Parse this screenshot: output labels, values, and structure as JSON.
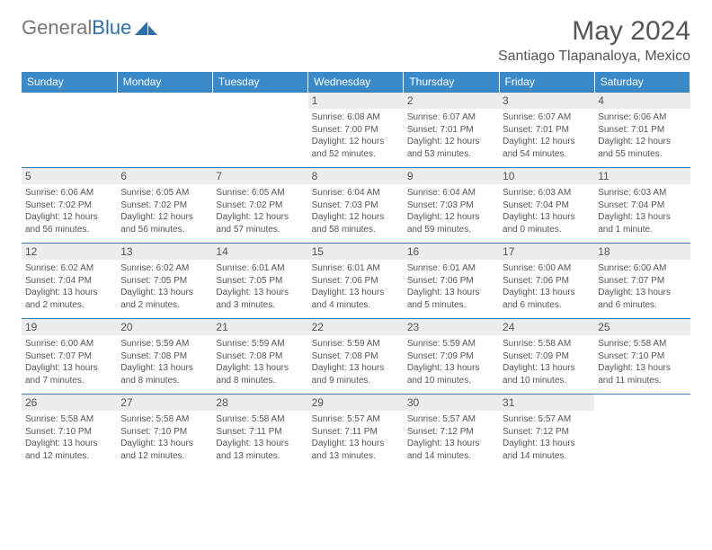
{
  "logo": {
    "part1": "General",
    "part2": "Blue"
  },
  "title": "May 2024",
  "location": "Santiago Tlapanaloya, Mexico",
  "colors": {
    "header_bg": "#3a8ac9",
    "row_divider": "#3a78a5",
    "daynum_bg": "#ececec"
  },
  "weekdays": [
    "Sunday",
    "Monday",
    "Tuesday",
    "Wednesday",
    "Thursday",
    "Friday",
    "Saturday"
  ],
  "weeks": [
    [
      null,
      null,
      null,
      {
        "n": "1",
        "sr": "6:08 AM",
        "ss": "7:00 PM",
        "dl": "12 hours and 52 minutes."
      },
      {
        "n": "2",
        "sr": "6:07 AM",
        "ss": "7:01 PM",
        "dl": "12 hours and 53 minutes."
      },
      {
        "n": "3",
        "sr": "6:07 AM",
        "ss": "7:01 PM",
        "dl": "12 hours and 54 minutes."
      },
      {
        "n": "4",
        "sr": "6:06 AM",
        "ss": "7:01 PM",
        "dl": "12 hours and 55 minutes."
      }
    ],
    [
      {
        "n": "5",
        "sr": "6:06 AM",
        "ss": "7:02 PM",
        "dl": "12 hours and 56 minutes."
      },
      {
        "n": "6",
        "sr": "6:05 AM",
        "ss": "7:02 PM",
        "dl": "12 hours and 56 minutes."
      },
      {
        "n": "7",
        "sr": "6:05 AM",
        "ss": "7:02 PM",
        "dl": "12 hours and 57 minutes."
      },
      {
        "n": "8",
        "sr": "6:04 AM",
        "ss": "7:03 PM",
        "dl": "12 hours and 58 minutes."
      },
      {
        "n": "9",
        "sr": "6:04 AM",
        "ss": "7:03 PM",
        "dl": "12 hours and 59 minutes."
      },
      {
        "n": "10",
        "sr": "6:03 AM",
        "ss": "7:04 PM",
        "dl": "13 hours and 0 minutes."
      },
      {
        "n": "11",
        "sr": "6:03 AM",
        "ss": "7:04 PM",
        "dl": "13 hours and 1 minute."
      }
    ],
    [
      {
        "n": "12",
        "sr": "6:02 AM",
        "ss": "7:04 PM",
        "dl": "13 hours and 2 minutes."
      },
      {
        "n": "13",
        "sr": "6:02 AM",
        "ss": "7:05 PM",
        "dl": "13 hours and 2 minutes."
      },
      {
        "n": "14",
        "sr": "6:01 AM",
        "ss": "7:05 PM",
        "dl": "13 hours and 3 minutes."
      },
      {
        "n": "15",
        "sr": "6:01 AM",
        "ss": "7:06 PM",
        "dl": "13 hours and 4 minutes."
      },
      {
        "n": "16",
        "sr": "6:01 AM",
        "ss": "7:06 PM",
        "dl": "13 hours and 5 minutes."
      },
      {
        "n": "17",
        "sr": "6:00 AM",
        "ss": "7:06 PM",
        "dl": "13 hours and 6 minutes."
      },
      {
        "n": "18",
        "sr": "6:00 AM",
        "ss": "7:07 PM",
        "dl": "13 hours and 6 minutes."
      }
    ],
    [
      {
        "n": "19",
        "sr": "6:00 AM",
        "ss": "7:07 PM",
        "dl": "13 hours and 7 minutes."
      },
      {
        "n": "20",
        "sr": "5:59 AM",
        "ss": "7:08 PM",
        "dl": "13 hours and 8 minutes."
      },
      {
        "n": "21",
        "sr": "5:59 AM",
        "ss": "7:08 PM",
        "dl": "13 hours and 8 minutes."
      },
      {
        "n": "22",
        "sr": "5:59 AM",
        "ss": "7:08 PM",
        "dl": "13 hours and 9 minutes."
      },
      {
        "n": "23",
        "sr": "5:59 AM",
        "ss": "7:09 PM",
        "dl": "13 hours and 10 minutes."
      },
      {
        "n": "24",
        "sr": "5:58 AM",
        "ss": "7:09 PM",
        "dl": "13 hours and 10 minutes."
      },
      {
        "n": "25",
        "sr": "5:58 AM",
        "ss": "7:10 PM",
        "dl": "13 hours and 11 minutes."
      }
    ],
    [
      {
        "n": "26",
        "sr": "5:58 AM",
        "ss": "7:10 PM",
        "dl": "13 hours and 12 minutes."
      },
      {
        "n": "27",
        "sr": "5:58 AM",
        "ss": "7:10 PM",
        "dl": "13 hours and 12 minutes."
      },
      {
        "n": "28",
        "sr": "5:58 AM",
        "ss": "7:11 PM",
        "dl": "13 hours and 13 minutes."
      },
      {
        "n": "29",
        "sr": "5:57 AM",
        "ss": "7:11 PM",
        "dl": "13 hours and 13 minutes."
      },
      {
        "n": "30",
        "sr": "5:57 AM",
        "ss": "7:12 PM",
        "dl": "13 hours and 14 minutes."
      },
      {
        "n": "31",
        "sr": "5:57 AM",
        "ss": "7:12 PM",
        "dl": "13 hours and 14 minutes."
      },
      null
    ]
  ],
  "labels": {
    "sunrise": "Sunrise: ",
    "sunset": "Sunset: ",
    "daylight": "Daylight: "
  }
}
